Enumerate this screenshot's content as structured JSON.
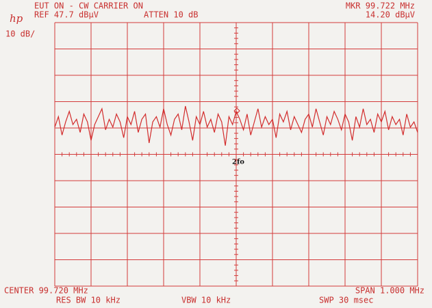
{
  "chart_data": {
    "type": "line",
    "title": "EUT ON - CW CARRIER ON",
    "logo": "hp",
    "reference": "REF 47.7 dBµV",
    "attenuation": "ATTEN 10 dB",
    "scale": "10 dB/",
    "marker_frequency": "MKR 99.722 MHz",
    "marker_level": "14.20 dBµV",
    "marker": {
      "x": 99.722,
      "value": 14.2
    },
    "annotation": "2fo",
    "center": "CENTER 99.720 MHz",
    "span": "SPAN 1.000 MHz",
    "res_bw": "RES BW 10 kHz",
    "vbw": "VBW 10 kHz",
    "sweep": "SWP 30 msec",
    "color": "#d22b2b",
    "grid": true,
    "xlim": [
      99.22,
      100.22
    ],
    "ylim": [
      -52.3,
      47.7
    ],
    "x": [
      99.22,
      99.23,
      99.24,
      99.25,
      99.26,
      99.27,
      99.28,
      99.29,
      99.3,
      99.31,
      99.32,
      99.33,
      99.34,
      99.35,
      99.36,
      99.37,
      99.38,
      99.39,
      99.4,
      99.41,
      99.42,
      99.43,
      99.44,
      99.45,
      99.46,
      99.47,
      99.48,
      99.49,
      99.5,
      99.51,
      99.52,
      99.53,
      99.54,
      99.55,
      99.56,
      99.57,
      99.58,
      99.59,
      99.6,
      99.61,
      99.62,
      99.63,
      99.64,
      99.65,
      99.66,
      99.67,
      99.68,
      99.69,
      99.7,
      99.71,
      99.72,
      99.73,
      99.74,
      99.75,
      99.76,
      99.77,
      99.78,
      99.79,
      99.8,
      99.81,
      99.82,
      99.83,
      99.84,
      99.85,
      99.86,
      99.87,
      99.88,
      99.89,
      99.9,
      99.91,
      99.92,
      99.93,
      99.94,
      99.95,
      99.96,
      99.97,
      99.98,
      99.99,
      100.0,
      100.01,
      100.02,
      100.03,
      100.04,
      100.05,
      100.06,
      100.07,
      100.08,
      100.09,
      100.1,
      100.11,
      100.12,
      100.13,
      100.14,
      100.15,
      100.16,
      100.17,
      100.18,
      100.19,
      100.2,
      100.21,
      100.22
    ],
    "values": [
      8,
      12,
      5,
      10,
      14,
      9,
      11,
      6,
      13,
      10,
      3,
      9,
      12,
      15,
      7,
      11,
      8,
      13,
      10,
      4,
      12,
      9,
      14,
      6,
      11,
      13,
      2,
      10,
      12,
      8,
      15,
      9,
      5,
      11,
      13,
      7,
      16,
      10,
      3,
      12,
      9,
      14,
      8,
      11,
      6,
      13,
      10,
      1,
      12,
      9,
      14,
      11,
      7,
      13,
      5,
      10,
      15,
      8,
      12,
      9,
      11,
      4,
      13,
      10,
      14,
      7,
      12,
      9,
      6,
      11,
      13,
      8,
      15,
      10,
      5,
      12,
      9,
      14,
      11,
      7,
      13,
      10,
      3,
      12,
      8,
      15,
      9,
      11,
      6,
      13,
      10,
      14,
      7,
      12,
      9,
      11,
      5,
      13,
      8,
      10,
      6
    ]
  }
}
